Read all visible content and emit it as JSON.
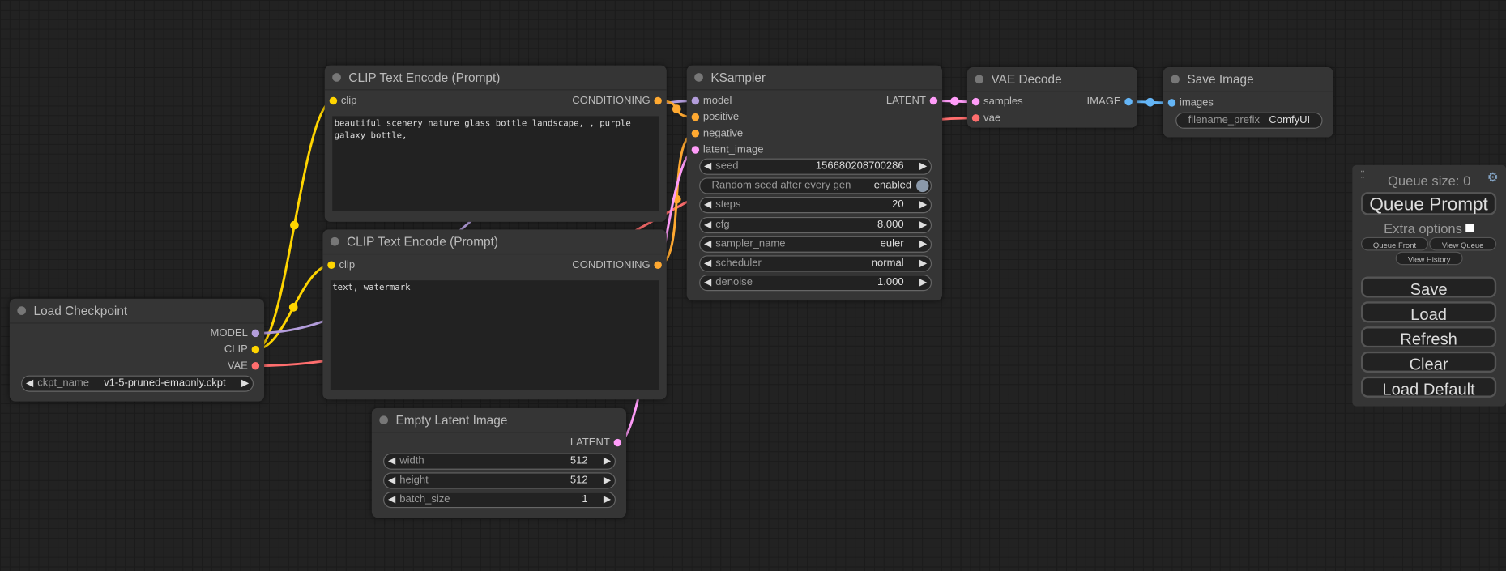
{
  "colors": {
    "MODEL": "#b39ddb",
    "CLIP": "#ffd500",
    "VAE": "#ff6e6e",
    "CONDITIONING": "#ffa931",
    "LATENT": "#ff9cf9",
    "IMAGE": "#64b5f6"
  },
  "nodes": [
    {
      "title": "Load Checkpoint",
      "inputs": [],
      "outputs": [
        {
          "name": "MODEL",
          "type": "MODEL"
        },
        {
          "name": "CLIP",
          "type": "CLIP"
        },
        {
          "name": "VAE",
          "type": "VAE"
        }
      ],
      "widgets": [
        {
          "label": "ckpt_name",
          "value": "v1-5-pruned-emaonly.ckpt"
        }
      ]
    },
    {
      "title": "CLIP Text Encode (Prompt)",
      "inputs": [
        {
          "name": "clip",
          "type": "CLIP"
        }
      ],
      "outputs": [
        {
          "name": "CONDITIONING",
          "type": "CONDITIONING"
        }
      ],
      "widgets": [],
      "text": "beautiful scenery nature glass bottle landscape, , purple galaxy bottle,"
    },
    {
      "title": "CLIP Text Encode (Prompt)",
      "inputs": [
        {
          "name": "clip",
          "type": "CLIP"
        }
      ],
      "outputs": [
        {
          "name": "CONDITIONING",
          "type": "CONDITIONING"
        }
      ],
      "widgets": [],
      "text": "text, watermark"
    },
    {
      "title": "Empty Latent Image",
      "inputs": [],
      "outputs": [
        {
          "name": "LATENT",
          "type": "LATENT"
        }
      ],
      "widgets": [
        {
          "label": "width",
          "value": "512"
        },
        {
          "label": "height",
          "value": "512"
        },
        {
          "label": "batch_size",
          "value": "1"
        }
      ]
    },
    {
      "title": "KSampler",
      "inputs": [
        {
          "name": "model",
          "type": "MODEL"
        },
        {
          "name": "positive",
          "type": "CONDITIONING"
        },
        {
          "name": "negative",
          "type": "CONDITIONING"
        },
        {
          "name": "latent_image",
          "type": "LATENT"
        }
      ],
      "outputs": [
        {
          "name": "LATENT",
          "type": "LATENT"
        }
      ],
      "widgets": [
        {
          "label": "seed",
          "value": "156680208700286"
        },
        {
          "label": "Random seed after every gen",
          "value": "enabled",
          "toggle": true
        },
        {
          "label": "steps",
          "value": "20"
        },
        {
          "label": "cfg",
          "value": "8.000"
        },
        {
          "label": "sampler_name",
          "value": "euler"
        },
        {
          "label": "scheduler",
          "value": "normal"
        },
        {
          "label": "denoise",
          "value": "1.000"
        }
      ]
    },
    {
      "title": "VAE Decode",
      "inputs": [
        {
          "name": "samples",
          "type": "LATENT"
        },
        {
          "name": "vae",
          "type": "VAE"
        }
      ],
      "outputs": [
        {
          "name": "IMAGE",
          "type": "IMAGE"
        }
      ],
      "widgets": []
    },
    {
      "title": "Save Image",
      "inputs": [
        {
          "name": "images",
          "type": "IMAGE"
        }
      ],
      "outputs": [],
      "widgets": [
        {
          "label": "filename_prefix",
          "value": "ComfyUI",
          "plain": true
        }
      ]
    }
  ],
  "panel": {
    "queue_size": "Queue size: 0",
    "queue_prompt": "Queue Prompt",
    "extra_options": "Extra options",
    "extra_options_checked": false,
    "queue_front": "Queue Front",
    "view_queue": "View Queue",
    "view_history": "View History",
    "save": "Save",
    "load": "Load",
    "refresh": "Refresh",
    "clear": "Clear",
    "load_default": "Load Default"
  }
}
